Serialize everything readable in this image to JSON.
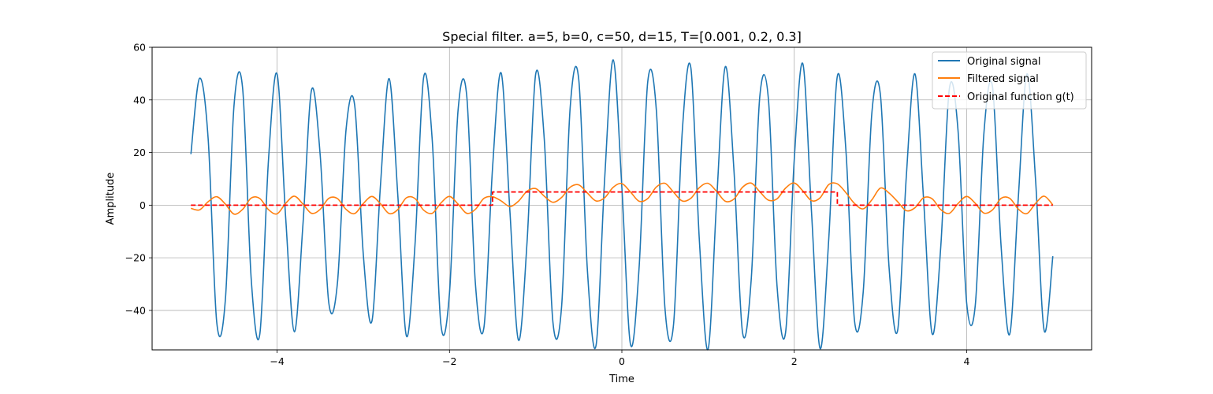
{
  "chart_data": {
    "type": "line",
    "title": "Special filter. a=5, b=0, c=50, d=15, T=[0.001, 0.2, 0.3]",
    "xlabel": "Time",
    "ylabel": "Amplitude",
    "xlim": [
      -5.45,
      5.45
    ],
    "ylim": [
      -55,
      60
    ],
    "xticks": [
      -4,
      -2,
      0,
      2,
      4
    ],
    "xtick_labels": [
      "−4",
      "−2",
      "0",
      "2",
      "4"
    ],
    "yticks": [
      -40,
      -20,
      0,
      20,
      40,
      60
    ],
    "ytick_labels": [
      "−40",
      "−20",
      "0",
      "20",
      "40",
      "60"
    ],
    "grid": true,
    "legend_position": "top-right",
    "legend": [
      {
        "label": "Original signal",
        "color": "#1f77b4",
        "style": "solid"
      },
      {
        "label": "Filtered signal",
        "color": "#ff7f0e",
        "style": "solid"
      },
      {
        "label": "Original function g(t)",
        "color": "#ff0000",
        "style": "dashed"
      }
    ],
    "series": [
      {
        "name": "Original signal",
        "color": "#1f77b4",
        "x": [
          -5.0,
          -4.9,
          -4.8,
          -4.7,
          -4.6,
          -4.5,
          -4.4,
          -4.3,
          -4.2,
          -4.1,
          -4.0,
          -3.9,
          -3.8,
          -3.7,
          -3.6,
          -3.5,
          -3.4,
          -3.3,
          -3.2,
          -3.1,
          -3.0,
          -2.9,
          -2.8,
          -2.7,
          -2.6,
          -2.5,
          -2.4,
          -2.3,
          -2.2,
          -2.1,
          -2.0,
          -1.9,
          -1.8,
          -1.7,
          -1.6,
          -1.5,
          -1.4,
          -1.3,
          -1.2,
          -1.1,
          -1.0,
          -0.9,
          -0.8,
          -0.7,
          -0.6,
          -0.5,
          -0.4,
          -0.3,
          -0.2,
          -0.1,
          0.0,
          0.1,
          0.2,
          0.3,
          0.4,
          0.5,
          0.6,
          0.7,
          0.8,
          0.9,
          1.0,
          1.1,
          1.2,
          1.3,
          1.4,
          1.5,
          1.6,
          1.7,
          1.8,
          1.9,
          2.0,
          2.1,
          2.2,
          2.3,
          2.4,
          2.5,
          2.6,
          2.7,
          2.8,
          2.9,
          3.0,
          3.1,
          3.2,
          3.3,
          3.4,
          3.5,
          3.6,
          3.7,
          3.8,
          3.9,
          4.0,
          4.1,
          4.2,
          4.3,
          4.4,
          4.5,
          4.6,
          4.7,
          4.8,
          4.9,
          5.0
        ],
        "y": [
          19.4,
          48.2,
          25.3,
          -44.6,
          -35.9,
          37.8,
          44.4,
          -28.2,
          -48.9,
          17.1,
          49.8,
          -5.0,
          -48.1,
          -7.3,
          43.8,
          19.0,
          -37.2,
          -29.6,
          28.7,
          38.0,
          -18.7,
          -44.1,
          7.9,
          48.1,
          4.0,
          -49.7,
          -15.0,
          48.5,
          24.7,
          -45.2,
          -33.4,
          36.2,
          41.6,
          -29.5,
          -46.4,
          14.3,
          50.2,
          -1.7,
          -51.3,
          -14.0,
          49.8,
          24.9,
          -44.4,
          -38.9,
          37.0,
          47.7,
          -24.7,
          -53.4,
          9.8,
          55.2,
          6.7,
          -52.9,
          -23.7,
          46.8,
          36.1,
          -39.2,
          -45.2,
          27.6,
          52.3,
          -13.9,
          -54.8,
          2.0,
          52.6,
          13.4,
          -48.4,
          -28.6,
          41.2,
          40.4,
          -30.6,
          -48.2,
          17.4,
          53.7,
          -2.5,
          -54.5,
          -13.0,
          49.0,
          20.5,
          -44.2,
          -33.0,
          34.9,
          41.8,
          -23.7,
          -47.5,
          10.9,
          49.9,
          2.5,
          -48.9,
          -15.7,
          44.4,
          28.4,
          -37.1,
          -38.1,
          27.2,
          45.0,
          -15.7,
          -49.0,
          3.1,
          49.9,
          9.4,
          -47.7,
          -19.4
        ]
      },
      {
        "name": "Filtered signal",
        "color": "#ff7f0e",
        "x": [
          -5.0,
          -4.9,
          -4.8,
          -4.7,
          -4.6,
          -4.5,
          -4.4,
          -4.3,
          -4.2,
          -4.1,
          -4.0,
          -3.9,
          -3.8,
          -3.7,
          -3.6,
          -3.5,
          -3.4,
          -3.3,
          -3.2,
          -3.1,
          -3.0,
          -2.9,
          -2.8,
          -2.7,
          -2.6,
          -2.5,
          -2.4,
          -2.3,
          -2.2,
          -2.1,
          -2.0,
          -1.9,
          -1.8,
          -1.7,
          -1.6,
          -1.5,
          -1.4,
          -1.3,
          -1.2,
          -1.1,
          -1.0,
          -0.9,
          -0.8,
          -0.7,
          -0.6,
          -0.5,
          -0.4,
          -0.3,
          -0.2,
          -0.1,
          0.0,
          0.1,
          0.2,
          0.3,
          0.4,
          0.5,
          0.6,
          0.7,
          0.8,
          0.9,
          1.0,
          1.1,
          1.2,
          1.3,
          1.4,
          1.5,
          1.6,
          1.7,
          1.8,
          1.9,
          2.0,
          2.1,
          2.2,
          2.3,
          2.4,
          2.5,
          2.6,
          2.7,
          2.8,
          2.9,
          3.0,
          3.1,
          3.2,
          3.3,
          3.4,
          3.5,
          3.6,
          3.7,
          3.8,
          3.9,
          4.0,
          4.1,
          4.2,
          4.3,
          4.4,
          4.5,
          4.6,
          4.7,
          4.8,
          4.9,
          5.0
        ],
        "y": [
          -1.2,
          -1.8,
          1.3,
          3.2,
          0.4,
          -3.4,
          -1.6,
          2.7,
          2.5,
          -1.7,
          -3.3,
          0.7,
          3.4,
          0.4,
          -3.1,
          -1.6,
          2.6,
          2.5,
          -1.6,
          -3.2,
          0.6,
          3.3,
          0.5,
          -3.2,
          -1.7,
          2.8,
          2.5,
          -1.9,
          -3.1,
          0.8,
          3.3,
          0.4,
          -3.1,
          -1.6,
          2.6,
          3.2,
          1.6,
          -0.5,
          1.5,
          5.3,
          6.3,
          3.4,
          1.1,
          2.9,
          6.8,
          7.7,
          4.6,
          1.6,
          2.8,
          6.8,
          8.2,
          5.0,
          1.5,
          2.5,
          6.9,
          8.3,
          4.9,
          1.6,
          2.6,
          6.7,
          8.3,
          5.2,
          1.5,
          2.3,
          6.8,
          8.4,
          5.1,
          1.9,
          2.4,
          6.5,
          8.4,
          5.4,
          1.7,
          2.8,
          7.8,
          8.1,
          4.7,
          0.6,
          -1.4,
          2.0,
          6.5,
          4.6,
          1.3,
          -2.1,
          -1.0,
          2.8,
          2.4,
          -1.7,
          -3.1,
          0.6,
          3.3,
          0.7,
          -3.0,
          -1.8,
          2.6,
          2.6,
          -1.5,
          -3.2,
          0.7,
          3.4,
          0.1
        ]
      },
      {
        "name": "Original function g(t)",
        "color": "#ff0000",
        "dashed": true,
        "x": [
          -5.0,
          -1.5,
          -1.5,
          2.5,
          2.5,
          5.0
        ],
        "y": [
          0,
          0,
          5,
          5,
          0,
          0
        ]
      }
    ]
  }
}
